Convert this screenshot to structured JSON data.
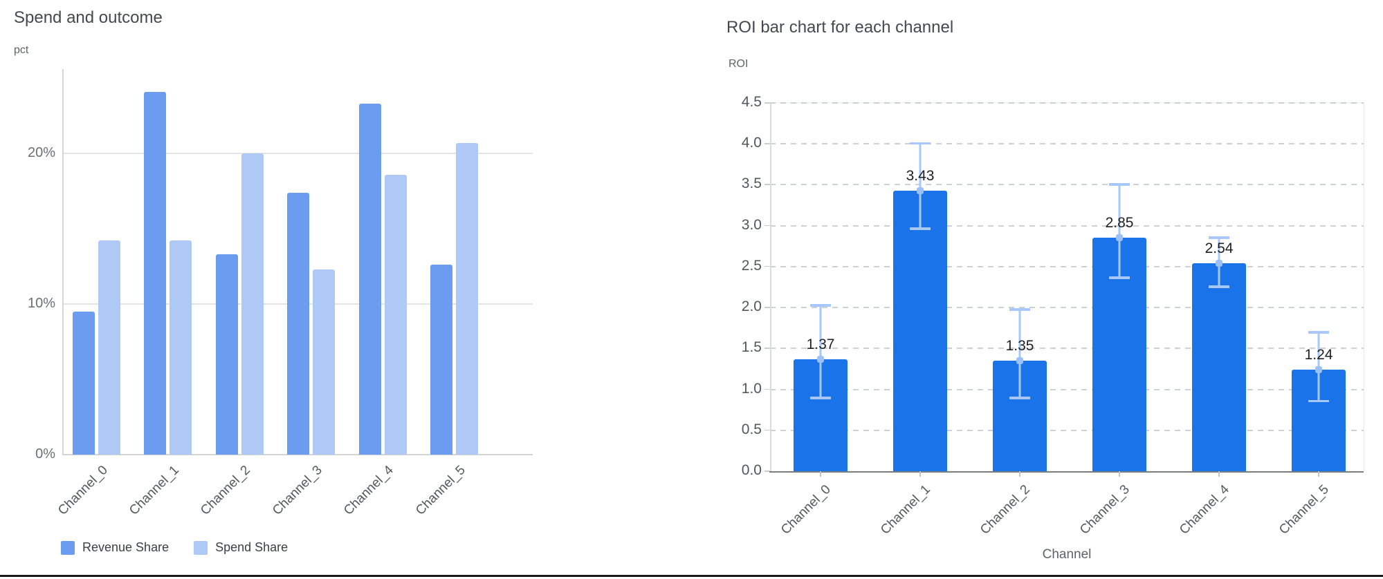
{
  "chart_data": [
    {
      "type": "bar",
      "title": "Spend and outcome",
      "ylabel_unit": "pct",
      "categories": [
        "Channel_0",
        "Channel_1",
        "Channel_2",
        "Channel_3",
        "Channel_4",
        "Channel_5"
      ],
      "series": [
        {
          "name": "Revenue Share",
          "color": "#6b9cf0",
          "values": [
            9.5,
            24.1,
            13.3,
            17.4,
            23.3,
            12.6
          ]
        },
        {
          "name": "Spend Share",
          "color": "#afc9f6",
          "values": [
            14.2,
            14.2,
            20.0,
            12.3,
            18.6,
            20.7
          ]
        }
      ],
      "yticks": [
        "0%",
        "10%",
        "20%"
      ],
      "ytick_values": [
        0,
        10,
        20
      ],
      "ylim": [
        0,
        25.6
      ],
      "grid": "horizontal-solid",
      "legend_position": "bottom"
    },
    {
      "type": "bar",
      "title": "ROI bar chart for each channel",
      "ylabel_unit": "ROI",
      "xlabel": "Channel",
      "categories": [
        "Channel_0",
        "Channel_1",
        "Channel_2",
        "Channel_3",
        "Channel_4",
        "Channel_5"
      ],
      "values": [
        1.37,
        3.43,
        1.35,
        2.85,
        2.54,
        1.24
      ],
      "value_labels": [
        "1.37",
        "3.43",
        "1.35",
        "2.85",
        "2.54",
        "1.24"
      ],
      "error_low": [
        0.88,
        2.95,
        0.88,
        2.35,
        2.24,
        0.84
      ],
      "error_high": [
        2.04,
        4.02,
        1.99,
        3.52,
        2.87,
        1.71
      ],
      "bar_color": "#1a73e8",
      "error_bar_color": "#a8c7fa",
      "yticks": [
        "0.0",
        "0.5",
        "1.0",
        "1.5",
        "2.0",
        "2.5",
        "3.0",
        "3.5",
        "4.0",
        "4.5"
      ],
      "ytick_values": [
        0,
        0.5,
        1.0,
        1.5,
        2.0,
        2.5,
        3.0,
        3.5,
        4.0,
        4.5
      ],
      "ylim": [
        0,
        4.5
      ],
      "grid": "horizontal-dashed",
      "legend_position": "none"
    }
  ]
}
